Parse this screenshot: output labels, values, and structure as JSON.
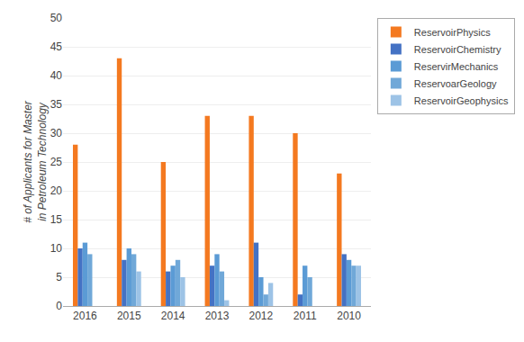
{
  "chart_data": {
    "type": "bar",
    "categories": [
      "2016",
      "2015",
      "2014",
      "2013",
      "2012",
      "2011",
      "2010"
    ],
    "series": [
      {
        "name": "ReservoirPhysics",
        "color": "#F47920",
        "values": [
          28,
          43,
          25,
          33,
          33,
          30,
          23
        ]
      },
      {
        "name": "ReservoirChemistry",
        "color": "#4472C4",
        "values": [
          10,
          8,
          6,
          7,
          11,
          2,
          9
        ]
      },
      {
        "name": "ReservirMechanics",
        "color": "#5B9BD5",
        "values": [
          11,
          10,
          7,
          9,
          5,
          7,
          8
        ]
      },
      {
        "name": "ReservoarGeology",
        "color": "#70A8D8",
        "values": [
          9,
          9,
          8,
          6,
          2,
          5,
          7
        ]
      },
      {
        "name": "ReservoirGeophysics",
        "color": "#9DC3E6",
        "values": [
          0,
          6,
          5,
          1,
          4,
          0,
          7
        ]
      }
    ],
    "ylabel": "# of Applicants for Master\nin Petroleum Technology",
    "ylim": [
      0,
      50
    ],
    "yticks": [
      0,
      5,
      10,
      15,
      20,
      25,
      30,
      35,
      40,
      45,
      50
    ],
    "grid": true,
    "legend": "upper right"
  }
}
